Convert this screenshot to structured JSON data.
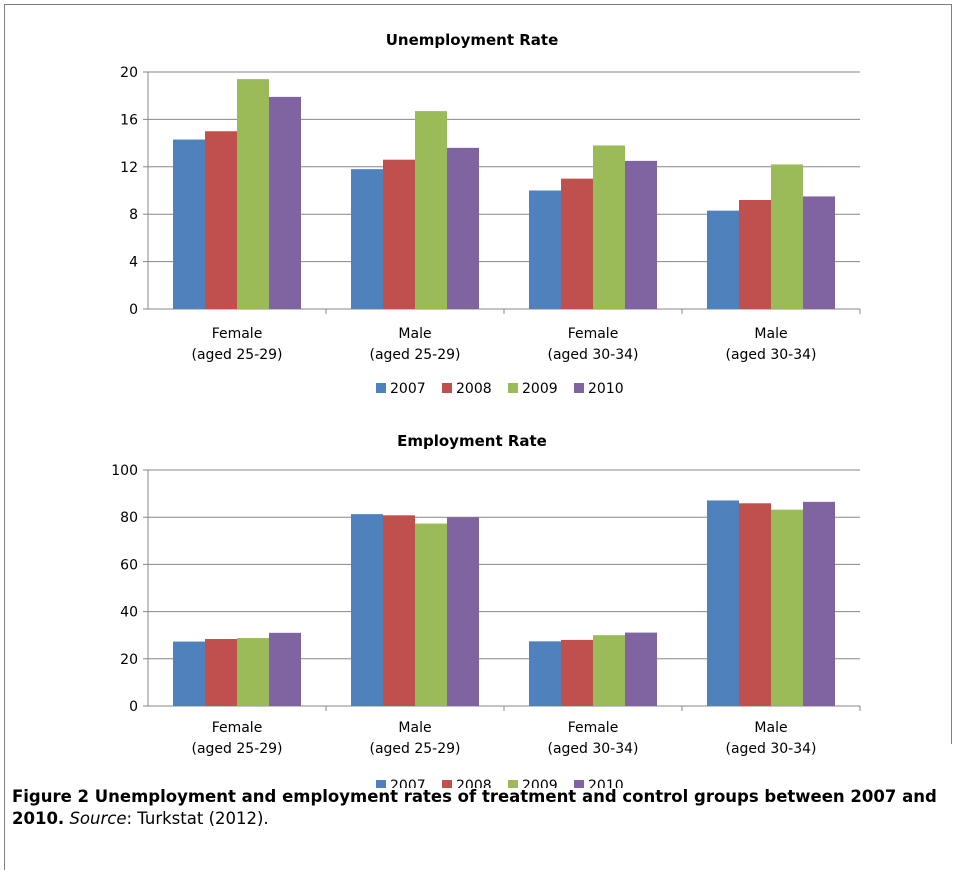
{
  "chart_data": [
    {
      "type": "bar",
      "title": "Unemployment Rate",
      "categories": [
        [
          "Female",
          "(aged 25-29)"
        ],
        [
          "Male",
          "(aged 25-29)"
        ],
        [
          "Female",
          "(aged 30-34)"
        ],
        [
          "Male",
          "(aged 30-34)"
        ]
      ],
      "series": [
        {
          "name": "2007",
          "color": "#4f81bd",
          "values": [
            14.3,
            11.8,
            10.0,
            8.3
          ]
        },
        {
          "name": "2008",
          "color": "#c0504d",
          "values": [
            15.0,
            12.6,
            11.0,
            9.2
          ]
        },
        {
          "name": "2009",
          "color": "#9bbb59",
          "values": [
            19.4,
            16.7,
            13.8,
            12.2
          ]
        },
        {
          "name": "2010",
          "color": "#8064a2",
          "values": [
            17.9,
            13.6,
            12.5,
            9.5
          ]
        }
      ],
      "ylim": [
        0,
        20
      ],
      "yticks": [
        "0",
        "4",
        "8",
        "12",
        "16",
        "20"
      ],
      "grid": true,
      "legend": "bottom"
    },
    {
      "type": "bar",
      "title": "Employment Rate",
      "categories": [
        [
          "Female",
          "(aged 25-29)"
        ],
        [
          "Male",
          "(aged 25-29)"
        ],
        [
          "Female",
          "(aged 30-34)"
        ],
        [
          "Male",
          "(aged 30-34)"
        ]
      ],
      "series": [
        {
          "name": "2007",
          "color": "#4f81bd",
          "values": [
            27.3,
            81.3,
            27.4,
            87.1
          ]
        },
        {
          "name": "2008",
          "color": "#c0504d",
          "values": [
            28.4,
            80.8,
            28.0,
            85.9
          ]
        },
        {
          "name": "2009",
          "color": "#9bbb59",
          "values": [
            28.8,
            77.3,
            30.0,
            83.2
          ]
        },
        {
          "name": "2010",
          "color": "#8064a2",
          "values": [
            31.0,
            79.9,
            31.1,
            86.5
          ]
        }
      ],
      "ylim": [
        0,
        100
      ],
      "yticks": [
        "0",
        "20",
        "40",
        "60",
        "80",
        "100"
      ],
      "grid": true,
      "legend": "bottom"
    }
  ],
  "caption": {
    "bold": "Figure 2 Unemployment and employment rates of treatment and control groups between 2007 and 2010.",
    "source_label": "Source",
    "source_rest": ": Turkstat (2012)."
  }
}
